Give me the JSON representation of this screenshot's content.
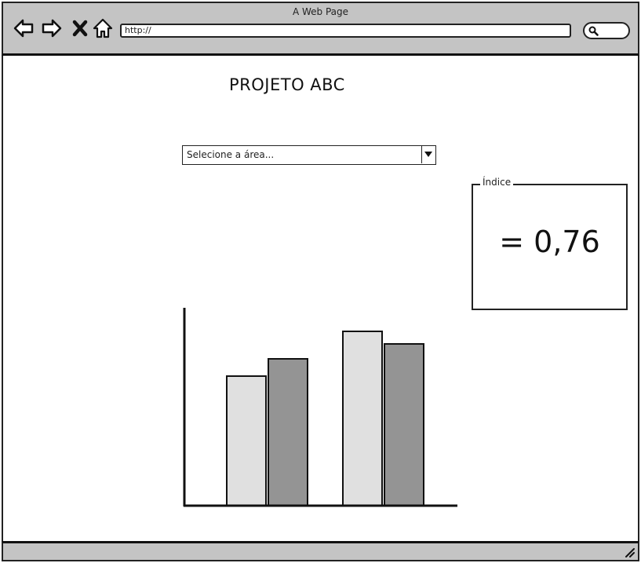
{
  "browser": {
    "window_title": "A Web Page",
    "url": "http://",
    "nav_icons": [
      "back-arrow-icon",
      "forward-arrow-icon",
      "close-x-icon",
      "home-icon"
    ],
    "search_icon": "search-icon"
  },
  "page": {
    "title": "PROJETO ABC",
    "area_select": {
      "placeholder": "Selecione a área..."
    },
    "indice": {
      "label": "Índice",
      "value": "= 0,76"
    }
  },
  "chart_data": {
    "type": "bar",
    "categories": [
      "",
      ""
    ],
    "series": [
      {
        "values": [
          165,
          222
        ],
        "color": "#e0e0e0"
      },
      {
        "values": [
          187,
          206
        ],
        "color": "#949494"
      }
    ],
    "ylim": [
      0,
      250
    ],
    "title": "",
    "xlabel": "",
    "ylabel": "",
    "grid": false
  },
  "colors": {
    "chrome": "#c4c4c4",
    "bar_light": "#e0e0e0",
    "bar_dark": "#949494",
    "stroke": "#222222"
  }
}
